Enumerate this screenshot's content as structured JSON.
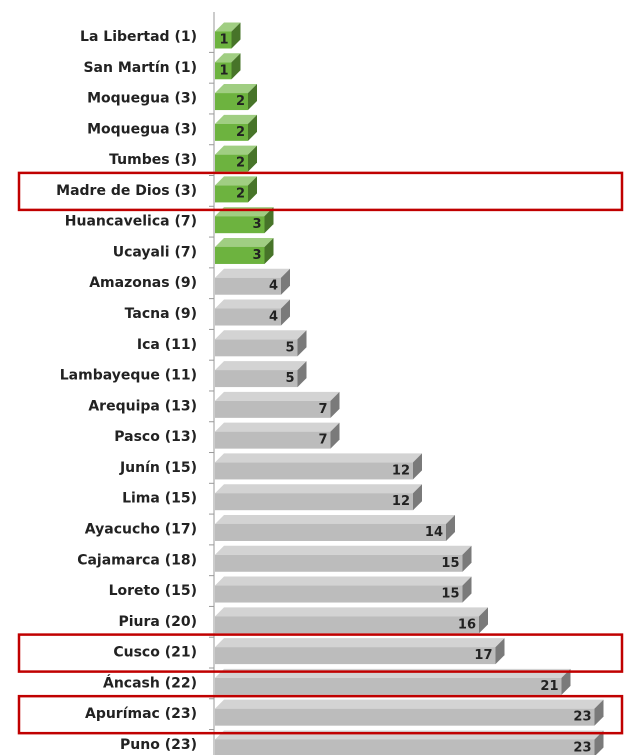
{
  "chart_data": {
    "type": "bar",
    "orientation": "horizontal",
    "categories": [
      "La Libertad (1)",
      "San Martín (1)",
      "Moquegua (3)",
      "Moquegua (3)",
      "Tumbes (3)",
      "Madre de Dios (3)",
      "Huancavelica (7)",
      "Ucayali (7)",
      "Amazonas (9)",
      "Tacna (9)",
      "Ica (11)",
      "Lambayeque (11)",
      "Arequipa (13)",
      "Pasco (13)",
      "Junín (15)",
      "Lima (15)",
      "Ayacucho (17)",
      "Cajamarca (18)",
      "Loreto (15)",
      "Piura (20)",
      "Cusco (21)",
      "Áncash (22)",
      "Apurímac (23)",
      "Puno (23)"
    ],
    "values": [
      1,
      1,
      2,
      2,
      2,
      2,
      3,
      3,
      4,
      4,
      5,
      5,
      7,
      7,
      12,
      12,
      14,
      15,
      15,
      16,
      17,
      21,
      23,
      23
    ],
    "colors": [
      "#6db33f",
      "#6db33f",
      "#6db33f",
      "#6db33f",
      "#6db33f",
      "#6db33f",
      "#6db33f",
      "#6db33f",
      "#bcbcbc",
      "#bcbcbc",
      "#bcbcbc",
      "#bcbcbc",
      "#bcbcbc",
      "#bcbcbc",
      "#bcbcbc",
      "#bcbcbc",
      "#bcbcbc",
      "#bcbcbc",
      "#bcbcbc",
      "#bcbcbc",
      "#bcbcbc",
      "#bcbcbc",
      "#bcbcbc",
      "#bcbcbc"
    ],
    "highlight": [
      5,
      20,
      22
    ],
    "highlight_color": "#c00000"
  }
}
